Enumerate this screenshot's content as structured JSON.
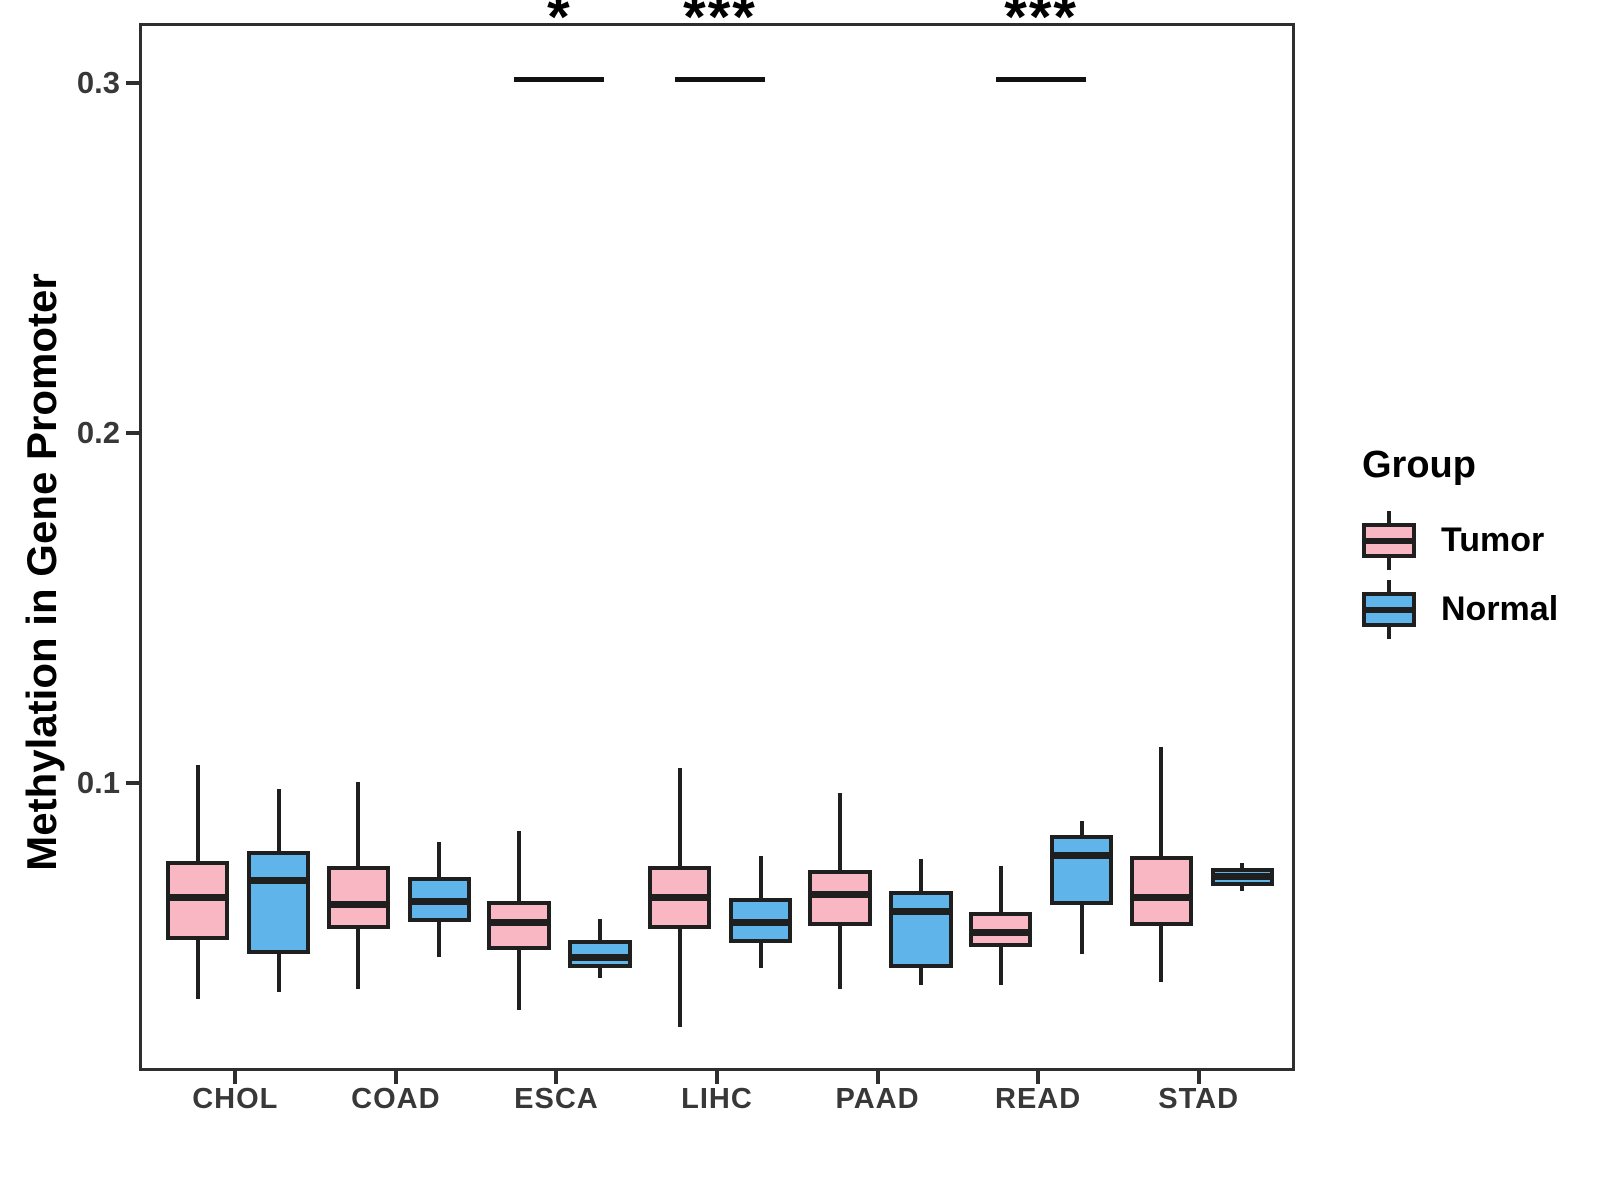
{
  "y_axis": {
    "label": "Methylation in Gene Promoter",
    "ticks": [
      {
        "value": 0.3,
        "label": "0.3"
      },
      {
        "value": 0.2,
        "label": "0.2"
      },
      {
        "value": 0.1,
        "label": "0.1"
      }
    ]
  },
  "legend": {
    "title": "Group",
    "items": [
      {
        "label": "Tumor",
        "color": "#F9B6C3"
      },
      {
        "label": "Normal",
        "color": "#5FB4EA"
      }
    ]
  },
  "colors": {
    "tumor_fill": "#F9B6C3",
    "normal_fill": "#5FB4EA",
    "line": "#1F1F1F",
    "axis_text": "#383838",
    "panel_border": "#2E2E2E",
    "background": "#FFFFFF"
  },
  "chart_data": {
    "type": "boxplot",
    "title": "",
    "xlabel": "",
    "ylabel": "Methylation in Gene Promoter",
    "grid": false,
    "legend_position": "right",
    "ylim": [
      0.018,
      0.317
    ],
    "yticks": [
      0.1,
      0.2,
      0.3
    ],
    "categories": [
      "CHOL",
      "COAD",
      "ESCA",
      "LIHC",
      "PAAD",
      "READ",
      "STAD"
    ],
    "series": [
      {
        "name": "Tumor",
        "color": "#F9B6C3",
        "boxes": [
          {
            "low": 0.039,
            "q1": 0.056,
            "median": 0.068,
            "q3": 0.0785,
            "high": 0.106
          },
          {
            "low": 0.042,
            "q1": 0.059,
            "median": 0.066,
            "q3": 0.077,
            "high": 0.101
          },
          {
            "low": 0.036,
            "q1": 0.053,
            "median": 0.061,
            "q3": 0.067,
            "high": 0.087
          },
          {
            "low": 0.031,
            "q1": 0.059,
            "median": 0.068,
            "q3": 0.077,
            "high": 0.105
          },
          {
            "low": 0.042,
            "q1": 0.06,
            "median": 0.069,
            "q3": 0.076,
            "high": 0.098
          },
          {
            "low": 0.043,
            "q1": 0.054,
            "median": 0.058,
            "q3": 0.064,
            "high": 0.077
          },
          {
            "low": 0.044,
            "q1": 0.06,
            "median": 0.068,
            "q3": 0.08,
            "high": 0.111
          }
        ]
      },
      {
        "name": "Normal",
        "color": "#5FB4EA",
        "boxes": [
          {
            "low": 0.041,
            "q1": 0.052,
            "median": 0.073,
            "q3": 0.0815,
            "high": 0.099
          },
          {
            "low": 0.051,
            "q1": 0.061,
            "median": 0.067,
            "q3": 0.074,
            "high": 0.084
          },
          {
            "low": 0.045,
            "q1": 0.048,
            "median": 0.051,
            "q3": 0.056,
            "high": 0.062
          },
          {
            "low": 0.048,
            "q1": 0.055,
            "median": 0.061,
            "q3": 0.068,
            "high": 0.08
          },
          {
            "low": 0.043,
            "q1": 0.048,
            "median": 0.064,
            "q3": 0.07,
            "high": 0.079
          },
          {
            "low": 0.052,
            "q1": 0.066,
            "median": 0.08,
            "q3": 0.086,
            "high": 0.09
          },
          {
            "low": 0.07,
            "q1": 0.0715,
            "median": 0.074,
            "q3": 0.0765,
            "high": 0.078
          }
        ]
      }
    ],
    "significance": [
      {
        "category": "ESCA",
        "label": "*"
      },
      {
        "category": "LIHC",
        "label": "***"
      },
      {
        "category": "READ",
        "label": "***"
      }
    ],
    "significance_bar_value": 0.3025
  }
}
